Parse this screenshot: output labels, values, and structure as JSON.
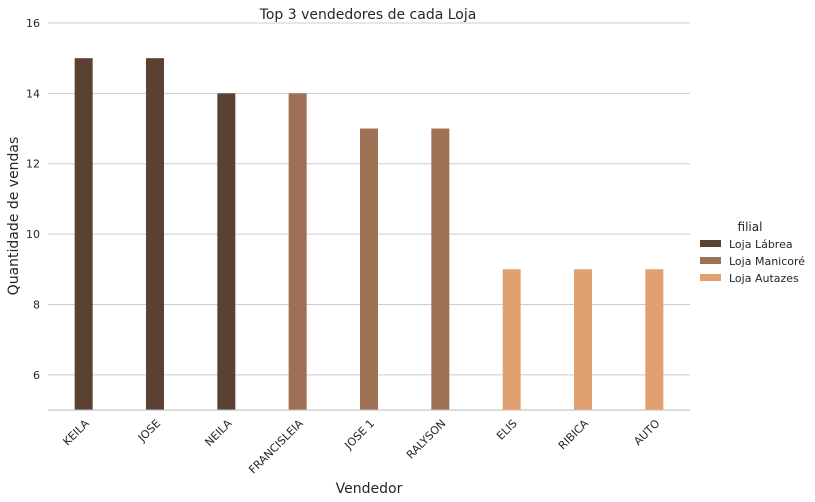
{
  "chart_data": {
    "type": "bar",
    "title": "Top 3 vendedores de cada Loja",
    "xlabel": "Vendedor",
    "ylabel": "Quantidade de vendas",
    "ylim": [
      5,
      16
    ],
    "yticks": [
      6,
      8,
      10,
      12,
      14,
      16
    ],
    "grid": true,
    "legend": {
      "title": "filial",
      "placement": "right",
      "entries": [
        "Loja Lábrea",
        "Loja Manicoré",
        "Loja Autazes"
      ]
    },
    "categories": [
      "KEILA",
      "JOSE",
      "NEILA",
      "FRANCISLEIA",
      "JOSE 1",
      "RALYSON",
      "ELIS",
      "RIBICA",
      "AUTO"
    ],
    "series": [
      {
        "name": "Loja Lábrea",
        "color": "#5a4131",
        "values": [
          15,
          15,
          14,
          null,
          null,
          null,
          null,
          null,
          null
        ]
      },
      {
        "name": "Loja Manicoré",
        "color": "#9e7154",
        "values": [
          null,
          null,
          null,
          14,
          13,
          13,
          null,
          null,
          null
        ]
      },
      {
        "name": "Loja Autazes",
        "color": "#e0a070",
        "values": [
          null,
          null,
          null,
          null,
          null,
          null,
          9,
          9,
          9
        ]
      }
    ]
  }
}
